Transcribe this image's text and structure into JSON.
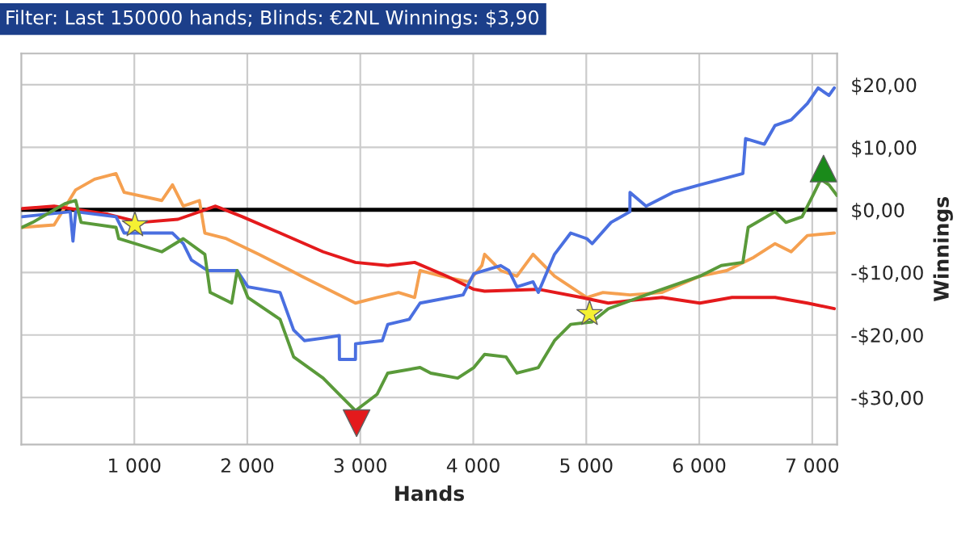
{
  "chart_data": {
    "type": "line",
    "title": "Filter: Last 150000 hands; Blinds: €2NL Winnings: $3,90",
    "xlabel": "Hands",
    "ylabel": "Winnings",
    "xlim": [
      0,
      7220
    ],
    "ylim": [
      -37.5,
      25
    ],
    "xticks": [
      {
        "value": 1000,
        "label": "1 000"
      },
      {
        "value": 2000,
        "label": "2 000"
      },
      {
        "value": 3000,
        "label": "3 000"
      },
      {
        "value": 4000,
        "label": "4 000"
      },
      {
        "value": 5000,
        "label": "5 000"
      },
      {
        "value": 6000,
        "label": "6 000"
      },
      {
        "value": 7000,
        "label": "7 000"
      }
    ],
    "yticks": [
      {
        "value": -30,
        "label": "-$30,00"
      },
      {
        "value": -20,
        "label": "-$20,00"
      },
      {
        "value": -10,
        "label": "-$10,00"
      },
      {
        "value": 0,
        "label": "$0,00"
      },
      {
        "value": 10,
        "label": "$10,00"
      },
      {
        "value": 20,
        "label": "$20,00"
      }
    ],
    "grid": true,
    "legend": false,
    "line_style": "solid",
    "ref_lines": [
      {
        "axis": "y",
        "value": 0,
        "label": null,
        "color": "#000000"
      }
    ],
    "series": [
      {
        "color": "#f5a050",
        "x": [
          5,
          290,
          481,
          648,
          838,
          910,
          1243,
          1338,
          1433,
          1576,
          1624,
          1814,
          2100,
          2386,
          2481,
          2957,
          3148,
          3338,
          3481,
          3529,
          3719,
          3957,
          4076,
          4100,
          4243,
          4386,
          4529,
          4719,
          5005,
          5148,
          5386,
          5671,
          6005,
          6243,
          6481,
          6671,
          6814,
          6957,
          7195
        ],
        "values": [
          -2.8,
          -2.4,
          3.2,
          4.9,
          5.8,
          2.8,
          1.5,
          4.0,
          0.6,
          1.5,
          -3.7,
          -4.6,
          -7.1,
          -9.7,
          -10.6,
          -14.9,
          -14.0,
          -13.2,
          -14.0,
          -9.7,
          -10.6,
          -11.5,
          -8.9,
          -7.1,
          -9.7,
          -10.6,
          -7.1,
          -10.6,
          -14.0,
          -13.2,
          -13.6,
          -13.2,
          -10.6,
          -9.7,
          -7.6,
          -5.4,
          -6.7,
          -4.1,
          -3.7
        ]
      },
      {
        "color": "#e41a1c",
        "x": [
          5,
          290,
          767,
          1052,
          1386,
          1719,
          1957,
          2290,
          2671,
          2957,
          3243,
          3481,
          3767,
          4005,
          4100,
          4576,
          4957,
          5195,
          5386,
          5671,
          6005,
          6290,
          6671,
          6957,
          7195
        ],
        "values": [
          0.2,
          0.6,
          -0.7,
          -2.0,
          -1.5,
          0.6,
          -1.1,
          -3.7,
          -6.7,
          -8.4,
          -8.9,
          -8.4,
          -10.6,
          -12.7,
          -13.0,
          -12.7,
          -14.0,
          -14.9,
          -14.5,
          -14.0,
          -14.9,
          -14.0,
          -14.0,
          -14.9,
          -15.8
        ]
      },
      {
        "color": "#4a6fe0",
        "x": [
          5,
          433,
          457,
          481,
          838,
          910,
          1338,
          1433,
          1505,
          1648,
          1910,
          2005,
          2290,
          2410,
          2505,
          2671,
          2814,
          2815,
          2957,
          2958,
          3195,
          3243,
          3433,
          3529,
          3910,
          4005,
          4100,
          4243,
          4314,
          4386,
          4529,
          4576,
          4719,
          4862,
          5005,
          5052,
          5219,
          5386,
          5387,
          5529,
          5767,
          6005,
          6386,
          6410,
          6576,
          6671,
          6814,
          6957,
          7052,
          7148,
          7195
        ],
        "values": [
          -1.1,
          -0.3,
          -5.0,
          -0.3,
          -1.1,
          -3.7,
          -3.7,
          -5.4,
          -8.0,
          -9.7,
          -9.7,
          -12.3,
          -13.2,
          -19.2,
          -20.9,
          -20.5,
          -20.1,
          -23.9,
          -23.9,
          -21.4,
          -20.9,
          -18.3,
          -17.5,
          -14.9,
          -13.6,
          -10.2,
          -9.7,
          -8.9,
          -9.7,
          -12.3,
          -11.5,
          -13.2,
          -7.1,
          -3.7,
          -4.6,
          -5.4,
          -2.0,
          -0.3,
          2.8,
          0.6,
          2.8,
          4.0,
          5.8,
          11.4,
          10.5,
          13.5,
          14.4,
          17.0,
          19.5,
          18.3,
          19.5
        ]
      },
      {
        "color": "#5a9a3a",
        "x": [
          5,
          100,
          386,
          481,
          529,
          838,
          862,
          1243,
          1433,
          1624,
          1671,
          1862,
          1910,
          2005,
          2290,
          2410,
          2671,
          2814,
          2957,
          3148,
          3243,
          3529,
          3624,
          3862,
          4005,
          4100,
          4290,
          4386,
          4576,
          4719,
          4862,
          5052,
          5195,
          5529,
          6005,
          6195,
          6386,
          6433,
          6671,
          6767,
          6910,
          7005,
          7076,
          7148,
          7219
        ],
        "values": [
          -2.8,
          -2.0,
          1.0,
          1.5,
          -2.0,
          -2.8,
          -4.6,
          -6.7,
          -4.6,
          -7.1,
          -13.2,
          -14.9,
          -9.7,
          -14.0,
          -17.5,
          -23.5,
          -26.9,
          -29.5,
          -32.1,
          -29.5,
          -26.1,
          -25.2,
          -26.1,
          -26.9,
          -25.2,
          -23.1,
          -23.5,
          -26.1,
          -25.2,
          -20.9,
          -18.3,
          -17.9,
          -15.8,
          -13.6,
          -10.6,
          -8.9,
          -8.4,
          -2.8,
          -0.3,
          -2.0,
          -1.1,
          2.3,
          4.9,
          4.0,
          2.3
        ]
      },
      {
        "type": "scatter",
        "marker": "star",
        "color": "#f5f032",
        "x": [
          1005,
          5029
        ],
        "values": [
          -2.4,
          -16.6
        ]
      },
      {
        "type": "scatter",
        "marker": "triangle_down",
        "color": "#e41a1c",
        "x": [
          2967
        ],
        "values": [
          -34.1
        ]
      },
      {
        "type": "scatter",
        "marker": "triangle",
        "color": "#1a8a1a",
        "x": [
          7100
        ],
        "values": [
          6.6
        ]
      }
    ]
  }
}
